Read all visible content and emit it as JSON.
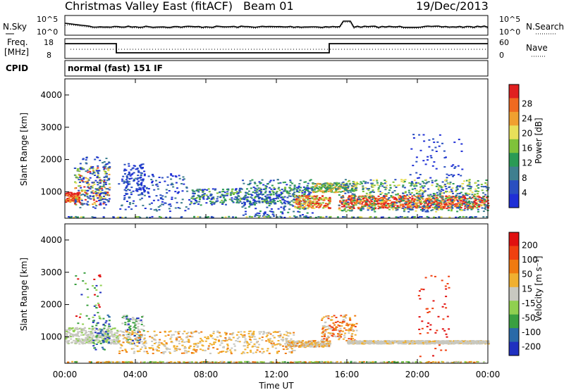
{
  "header": {
    "station": "Christmas Valley East (fitACF)",
    "beam": "Beam 01",
    "date": "19/Dec/2013"
  },
  "noise_panel": {
    "left_label": "N.Sky",
    "right_label": "N.Search",
    "left_ticks": [
      "10^5",
      "10^0"
    ],
    "right_ticks": [
      "10^5",
      "10^0"
    ]
  },
  "freq_panel": {
    "left_label_1": "Freq.",
    "left_label_2": "[MHz]",
    "left_ticks": [
      "18",
      "8"
    ],
    "right_label": "Nave",
    "right_ticks": [
      "60",
      "0"
    ],
    "cpid_label": "CPID",
    "cpid_text": "normal (fast) 151 IF"
  },
  "chart_data": [
    {
      "type": "heatmap",
      "name": "Power",
      "ylabel": "Slant Range [km]",
      "xlabel": "Time UT",
      "ylim": [
        180,
        4500
      ],
      "xlim": [
        "00:00",
        "24:00"
      ],
      "y_ticks": [
        "1000",
        "2000",
        "3000",
        "4000"
      ],
      "x_ticks": [
        "00:00",
        "04:00",
        "08:00",
        "12:00",
        "16:00",
        "20:00",
        "00:00"
      ],
      "colorbar_label": "Power [dB]",
      "colorbar_ticks": [
        "4",
        "8",
        "12",
        "16",
        "20",
        "24",
        "28"
      ],
      "colorbar_colors": [
        "#1f2fd6",
        "#2a4fc0",
        "#3f7f8f",
        "#2a9a55",
        "#7fc23a",
        "#e8e05a",
        "#f0a030",
        "#f06a20",
        "#e02020"
      ]
    },
    {
      "type": "heatmap",
      "name": "Velocity",
      "ylabel": "Slant Range [km]",
      "xlabel": "Time UT",
      "ylim": [
        180,
        4500
      ],
      "xlim": [
        "00:00",
        "24:00"
      ],
      "y_ticks": [
        "1000",
        "2000",
        "3000",
        "4000"
      ],
      "x_ticks": [
        "00:00",
        "04:00",
        "08:00",
        "12:00",
        "16:00",
        "20:00",
        "00:00"
      ],
      "colorbar_label": "Velocity [m s⁻¹]",
      "colorbar_ticks": [
        "200",
        "100",
        "50",
        "15",
        "-15",
        "-50",
        "-100",
        "-200"
      ],
      "colorbar_colors": [
        "#2030c0",
        "#2a6aa8",
        "#3aa040",
        "#90d050",
        "#c8c8c0",
        "#f0b030",
        "#f07a10",
        "#f04010",
        "#e01010"
      ]
    }
  ]
}
